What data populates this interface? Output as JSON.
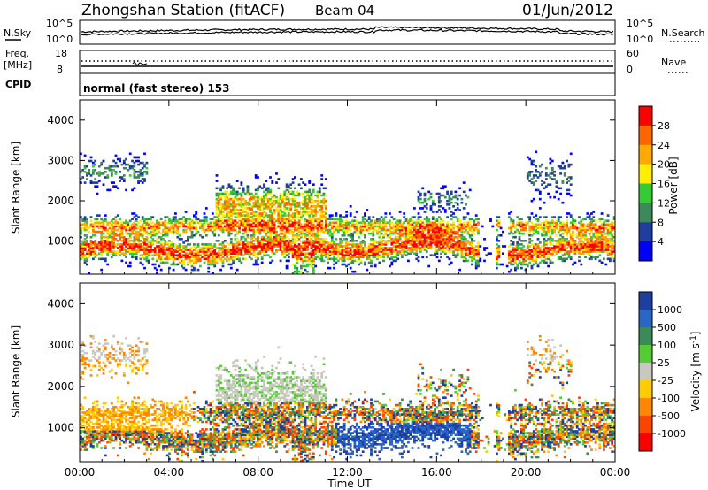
{
  "header": {
    "station_title": "Zhongshan Station (fitACF)",
    "beam": "Beam 04",
    "date": "01/Jun/2012"
  },
  "panels": {
    "nsky": {
      "left_label": "N.Sky",
      "right_label": "N.Search",
      "left_ticks": [
        "10^5",
        "10^0"
      ],
      "right_ticks": [
        "10^5",
        "10^0"
      ]
    },
    "freq": {
      "left_label_1": "Freq.",
      "left_label_2": "[MHz]",
      "left_ticks": [
        "18",
        "8"
      ],
      "right_ticks": [
        "60",
        "0"
      ],
      "right_label": "Nave"
    },
    "cpid": {
      "label": "CPID",
      "mode_text": "normal (fast stereo) 153"
    }
  },
  "chart_data": [
    {
      "type": "heatmap",
      "name": "power",
      "ylabel": "Slant Range [km]",
      "xlabel": "Time UT",
      "xlim": [
        0,
        24
      ],
      "ylim": [
        180,
        4500
      ],
      "x_tick_labels": [
        "00:00",
        "04:00",
        "08:00",
        "12:00",
        "16:00",
        "20:00",
        "00:00"
      ],
      "y_ticks": [
        1000,
        2000,
        3000,
        4000
      ],
      "colorbar": {
        "label": "Power [dB]",
        "tick_labels": [
          "28",
          "24",
          "20",
          "16",
          "12",
          "8",
          "4"
        ],
        "colors": [
          "#ff0000",
          "#ff6600",
          "#ffaa00",
          "#ffee00",
          "#33cc33",
          "#3c8a5a",
          "#1f3fa0",
          "#0000ff"
        ]
      },
      "grid": false
    },
    {
      "type": "heatmap",
      "name": "velocity",
      "ylabel": "Slant Range [km]",
      "xlabel": "Time UT",
      "xlim": [
        0,
        24
      ],
      "ylim": [
        180,
        4500
      ],
      "x_tick_labels": [
        "00:00",
        "04:00",
        "08:00",
        "12:00",
        "16:00",
        "20:00",
        "00:00"
      ],
      "y_ticks": [
        1000,
        2000,
        3000,
        4000
      ],
      "colorbar": {
        "label": "Velocity [m s^-1]",
        "tick_labels": [
          "1000",
          "500",
          "100",
          "25",
          "-25",
          "-100",
          "-500",
          "-1000"
        ],
        "colors": [
          "#1f3fa0",
          "#2a66c8",
          "#3a8a5a",
          "#55cc33",
          "#c8c8c0",
          "#ffcc00",
          "#ff8800",
          "#ff4400",
          "#ff0000"
        ]
      },
      "grid": false
    }
  ],
  "axis_title": "Time UT"
}
